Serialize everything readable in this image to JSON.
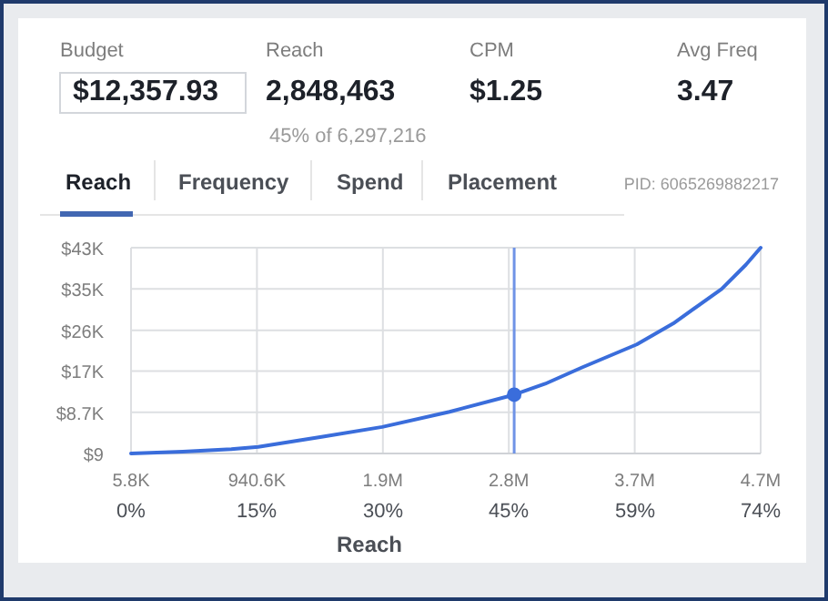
{
  "chart_data": [
    {
      "type": "other",
      "annotations": [
        "Budget",
        "$12,357.93",
        "Reach",
        "2,848,463",
        "45% of 6,297,216",
        "CPM",
        "$1.25",
        "Avg Freq",
        "3.47",
        "Reach",
        "Frequency",
        "Spend",
        "Placement",
        "PID: 6065269882217"
      ]
    },
    {
      "type": "line",
      "xlabel": "Reach",
      "xlim": [
        5800,
        4679800
      ],
      "xticks": [
        {
          "value": 5800,
          "label": "5.8K"
        },
        {
          "value": 940600,
          "label": "940.6K"
        },
        {
          "value": 1875400,
          "label": "1.9M"
        },
        {
          "value": 2810200,
          "label": "2.8M"
        },
        {
          "value": 3745000,
          "label": "3.7M"
        },
        {
          "value": 4679800,
          "label": "4.7M"
        }
      ],
      "x2lim": [
        0.09,
        74.3
      ],
      "x2ticks": [
        {
          "value": 0.09,
          "label": "0%"
        },
        {
          "value": 14.9,
          "label": "15%"
        },
        {
          "value": 29.8,
          "label": "30%"
        },
        {
          "value": 44.6,
          "label": "45%"
        },
        {
          "value": 59.5,
          "label": "59%"
        },
        {
          "value": 74.3,
          "label": "74%"
        }
      ],
      "ylim": [
        9,
        43400
      ],
      "yticks": [
        {
          "value": 9,
          "label": "$9"
        },
        {
          "value": 8700,
          "label": "$8.7K"
        },
        {
          "value": 17400,
          "label": "$17K"
        },
        {
          "value": 26000,
          "label": "$26K"
        },
        {
          "value": 34700,
          "label": "$35K"
        },
        {
          "value": 43400,
          "label": "$43K"
        }
      ],
      "grid": true,
      "line_style": "solid",
      "series": [
        {
          "type": "line",
          "color": "#3a6ddb",
          "x": [
            5800,
            390000,
            750000,
            950000,
            1420000,
            1870000,
            2370000,
            2850000,
            3080000,
            3350000,
            3760000,
            4030000,
            4390000,
            4570000,
            4679800
          ],
          "values": [
            9,
            400,
            900,
            1400,
            3500,
            5600,
            8800,
            12400,
            14700,
            18100,
            23000,
            27400,
            34700,
            39800,
            43400
          ]
        },
        {
          "type": "scatter",
          "color": "#3a6ddb",
          "marker": "circle",
          "x": [
            2850000
          ],
          "values": [
            12400
          ]
        }
      ],
      "ref_lines": [
        {
          "axis": "x",
          "value": 2850000,
          "color": "#6f93e6",
          "line_style": "solid"
        }
      ]
    }
  ]
}
